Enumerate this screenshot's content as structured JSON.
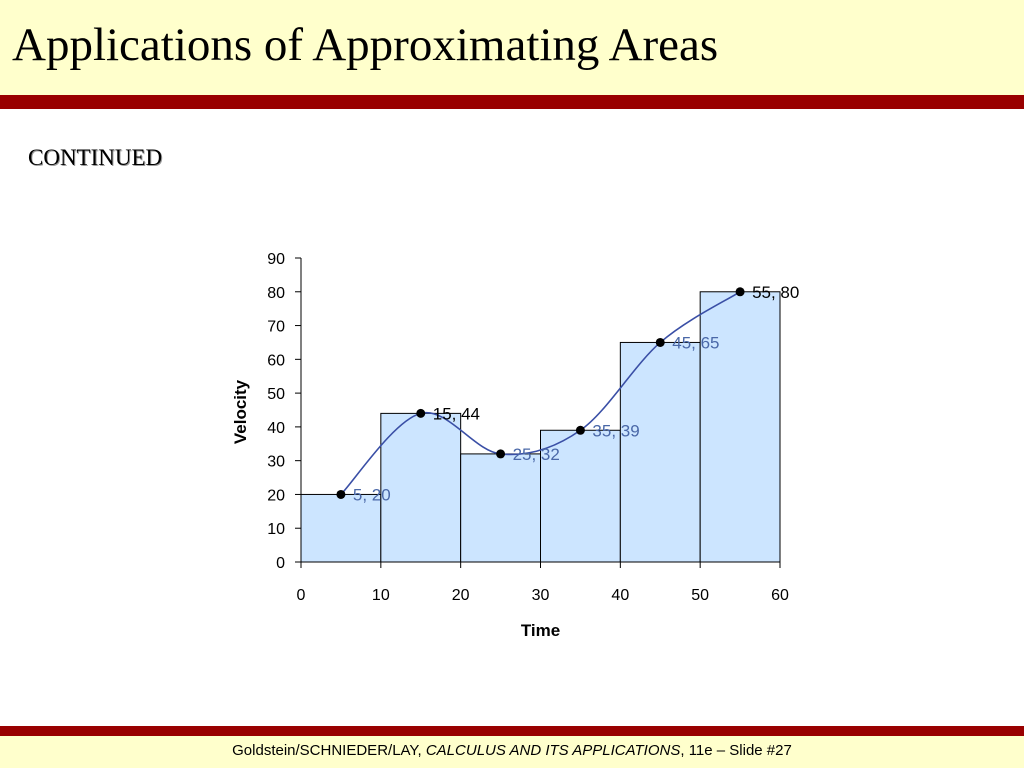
{
  "slide": {
    "title": "Applications of Approximating Areas",
    "subtitle": "CONTINUED",
    "footer": {
      "authors": "Goldstein/SCHNIEDER/LAY, ",
      "book": "CALCULUS AND ITS APPLICATIONS",
      "edition": ", 11e – Slide #27"
    }
  },
  "colors": {
    "band": "#ffffcc",
    "rule": "#990000",
    "bar_fill": "#cce5ff",
    "curve": "#3a4fa6",
    "blue_label": "#4a68a8"
  },
  "chart_data": {
    "type": "bar",
    "xlabel": "Time",
    "ylabel": "Velocity",
    "xlim": [
      0,
      60
    ],
    "ylim": [
      0,
      90
    ],
    "xticks": [
      0,
      10,
      20,
      30,
      40,
      50,
      60
    ],
    "yticks": [
      0,
      10,
      20,
      30,
      40,
      50,
      60,
      70,
      80,
      90
    ],
    "grid": false,
    "bars": [
      {
        "x0": 0,
        "x1": 10,
        "value": 20
      },
      {
        "x0": 10,
        "x1": 20,
        "value": 44
      },
      {
        "x0": 20,
        "x1": 30,
        "value": 32
      },
      {
        "x0": 30,
        "x1": 40,
        "value": 39
      },
      {
        "x0": 40,
        "x1": 50,
        "value": 65
      },
      {
        "x0": 50,
        "x1": 60,
        "value": 80
      }
    ],
    "points": [
      {
        "x": 5,
        "y": 20,
        "label": "5, 20"
      },
      {
        "x": 15,
        "y": 44,
        "label": "15, 44"
      },
      {
        "x": 25,
        "y": 32,
        "label": "25, 32"
      },
      {
        "x": 35,
        "y": 39,
        "label": "35, 39"
      },
      {
        "x": 45,
        "y": 65,
        "label": "45, 65"
      },
      {
        "x": 55,
        "y": 80,
        "label": "55, 80"
      }
    ]
  }
}
